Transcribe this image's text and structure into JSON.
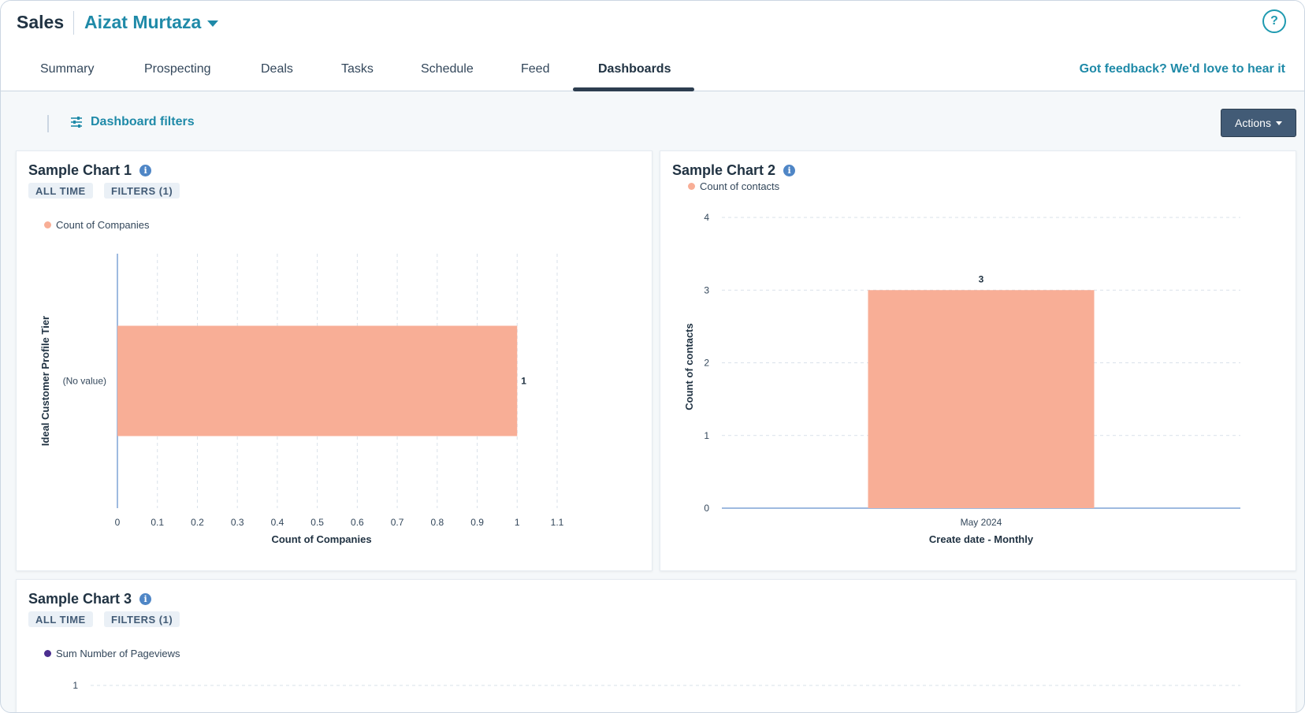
{
  "header": {
    "app_title": "Sales",
    "owner_name": "Aizat Murtaza",
    "help_label": "?",
    "feedback_link": "Got feedback? We'd love to hear it"
  },
  "tabs": [
    {
      "label": "Summary",
      "active": false
    },
    {
      "label": "Prospecting",
      "active": false
    },
    {
      "label": "Deals",
      "active": false
    },
    {
      "label": "Tasks",
      "active": false
    },
    {
      "label": "Schedule",
      "active": false
    },
    {
      "label": "Feed",
      "active": false
    },
    {
      "label": "Dashboards",
      "active": true
    }
  ],
  "toolbar": {
    "dashboard_filters_label": "Dashboard filters",
    "actions_label": "Actions"
  },
  "colors": {
    "accent": "#1f8aa8",
    "bar": "#f8ae96",
    "pageviews_dot": "#4b2e8f",
    "axis": "#7fa4d6"
  },
  "cards": {
    "chart1": {
      "title": "Sample Chart 1",
      "tag_time": "ALL TIME",
      "tag_filters": "FILTERS (1)",
      "legend": "Count of Companies"
    },
    "chart2": {
      "title": "Sample Chart 2",
      "legend": "Count of contacts"
    },
    "chart3": {
      "title": "Sample Chart 3",
      "tag_time": "ALL TIME",
      "tag_filters": "FILTERS (1)",
      "legend": "Sum Number of Pageviews"
    }
  },
  "chart_data": [
    {
      "type": "bar",
      "orientation": "horizontal",
      "title": "Sample Chart 1",
      "categories": [
        "(No value)"
      ],
      "series": [
        {
          "name": "Count of Companies",
          "values": [
            1
          ]
        }
      ],
      "xlabel": "Count of Companies",
      "ylabel": "Ideal Customer Profile Tier",
      "xlim": [
        0,
        1.1
      ],
      "x_ticks": [
        "0",
        "0.1",
        "0.2",
        "0.3",
        "0.4",
        "0.5",
        "0.6",
        "0.7",
        "0.8",
        "0.9",
        "1",
        "1.1"
      ],
      "data_labels": [
        "1"
      ],
      "grid": true,
      "legend": "top-left"
    },
    {
      "type": "bar",
      "orientation": "vertical",
      "title": "Sample Chart 2",
      "categories": [
        "May 2024"
      ],
      "series": [
        {
          "name": "Count of contacts",
          "values": [
            3
          ]
        }
      ],
      "xlabel": "Create date - Monthly",
      "ylabel": "Count of contacts",
      "ylim": [
        0,
        4
      ],
      "y_ticks": [
        "0",
        "1",
        "2",
        "3",
        "4"
      ],
      "data_labels": [
        "3"
      ],
      "grid": true,
      "legend": "top-left"
    },
    {
      "type": "line",
      "title": "Sample Chart 3",
      "series": [
        {
          "name": "Sum Number of Pageviews",
          "values": []
        }
      ],
      "y_ticks": [
        "1"
      ],
      "grid": true,
      "legend": "top-left"
    }
  ]
}
